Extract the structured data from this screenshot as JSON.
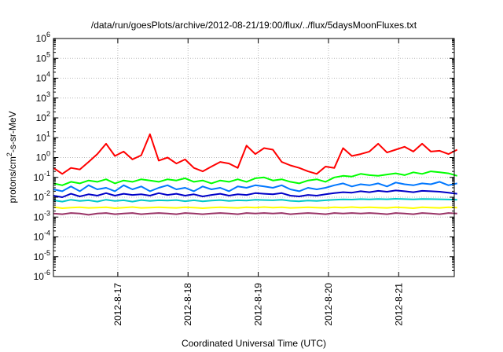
{
  "chart_data": {
    "type": "line",
    "title": "/data/run/goesPlots/archive/2012-08-21/19:00/flux/../flux/5daysMoonFluxes.txt",
    "xlabel": "Coordinated Universal Time (UTC)",
    "ylabel": "protons/cm²-s-sr-MeV",
    "ylabel_base": "protons/cm",
    "ylabel_sup": "2",
    "ylabel_rest": "-s-sr-MeV",
    "yscale": "log",
    "ylim": [
      1e-06,
      1000000.0
    ],
    "yticks": [
      {
        "base": "10",
        "exp": "-6"
      },
      {
        "base": "10",
        "exp": "-5"
      },
      {
        "base": "10",
        "exp": "-4"
      },
      {
        "base": "10",
        "exp": "-3"
      },
      {
        "base": "10",
        "exp": "-2"
      },
      {
        "base": "10",
        "exp": "-1"
      },
      {
        "base": "10",
        "exp": "0"
      },
      {
        "base": "10",
        "exp": "1"
      },
      {
        "base": "10",
        "exp": "2"
      },
      {
        "base": "10",
        "exp": "3"
      },
      {
        "base": "10",
        "exp": "4"
      },
      {
        "base": "10",
        "exp": "5"
      },
      {
        "base": "10",
        "exp": "6"
      }
    ],
    "xlim": [
      "2012-08-16 02:00",
      "2012-08-21 19:00"
    ],
    "xticks": [
      "2012-8-17",
      "2012-8-18",
      "2012-8-19",
      "2012-8-20",
      "2012-8-21"
    ],
    "grid": true,
    "series": [
      {
        "color": "#ff0000",
        "x_hours": [
          0,
          3,
          6,
          9,
          12,
          15,
          18,
          21,
          24,
          27,
          30,
          33,
          36,
          39,
          42,
          45,
          48,
          51,
          54,
          57,
          60,
          63,
          66,
          69,
          72,
          75,
          78,
          81,
          84,
          87,
          90,
          93,
          96,
          99,
          102,
          105,
          108,
          111,
          114,
          117,
          120,
          123,
          126,
          129,
          132,
          135,
          138
        ],
        "y": [
          0.3,
          0.15,
          0.3,
          0.25,
          0.6,
          1.5,
          5,
          1.2,
          2,
          0.8,
          1.3,
          15,
          0.7,
          1.0,
          0.5,
          0.8,
          0.3,
          0.2,
          0.35,
          0.6,
          0.5,
          0.3,
          4,
          1.5,
          3,
          2.5,
          0.6,
          0.4,
          0.3,
          0.2,
          0.15,
          0.35,
          0.3,
          3,
          1.2,
          1.5,
          2,
          5,
          1.8,
          2.5,
          3.5,
          2,
          5,
          2,
          2.2,
          1.5,
          2.5
        ]
      },
      {
        "color": "#00ff00",
        "y": [
          0.05,
          0.04,
          0.06,
          0.05,
          0.07,
          0.06,
          0.08,
          0.05,
          0.07,
          0.06,
          0.08,
          0.07,
          0.06,
          0.08,
          0.07,
          0.09,
          0.06,
          0.07,
          0.05,
          0.07,
          0.06,
          0.08,
          0.06,
          0.09,
          0.1,
          0.07,
          0.08,
          0.06,
          0.05,
          0.07,
          0.08,
          0.06,
          0.1,
          0.12,
          0.11,
          0.15,
          0.13,
          0.12,
          0.14,
          0.16,
          0.13,
          0.18,
          0.15,
          0.2,
          0.18,
          0.16,
          0.12
        ]
      },
      {
        "color": "#0077ff",
        "y": [
          0.025,
          0.02,
          0.035,
          0.02,
          0.04,
          0.025,
          0.03,
          0.02,
          0.04,
          0.025,
          0.035,
          0.02,
          0.03,
          0.04,
          0.025,
          0.03,
          0.02,
          0.035,
          0.025,
          0.03,
          0.02,
          0.035,
          0.03,
          0.04,
          0.035,
          0.03,
          0.04,
          0.025,
          0.02,
          0.03,
          0.025,
          0.03,
          0.04,
          0.05,
          0.035,
          0.045,
          0.04,
          0.05,
          0.035,
          0.055,
          0.045,
          0.04,
          0.05,
          0.045,
          0.06,
          0.04,
          0.05
        ]
      },
      {
        "color": "#0000c8",
        "y": [
          0.012,
          0.01,
          0.015,
          0.011,
          0.014,
          0.012,
          0.016,
          0.012,
          0.015,
          0.013,
          0.014,
          0.012,
          0.016,
          0.013,
          0.015,
          0.012,
          0.014,
          0.011,
          0.013,
          0.015,
          0.012,
          0.014,
          0.013,
          0.016,
          0.015,
          0.014,
          0.016,
          0.012,
          0.011,
          0.013,
          0.012,
          0.014,
          0.016,
          0.018,
          0.017,
          0.02,
          0.018,
          0.021,
          0.019,
          0.022,
          0.02,
          0.018,
          0.021,
          0.02,
          0.019,
          0.017,
          0.015
        ]
      },
      {
        "color": "#00c8c8",
        "y": [
          0.007,
          0.006,
          0.0075,
          0.0065,
          0.007,
          0.006,
          0.0075,
          0.0065,
          0.007,
          0.006,
          0.0072,
          0.0065,
          0.007,
          0.0068,
          0.0072,
          0.0063,
          0.007,
          0.0062,
          0.0068,
          0.0072,
          0.0065,
          0.007,
          0.0068,
          0.0075,
          0.0072,
          0.007,
          0.0074,
          0.0066,
          0.0062,
          0.0068,
          0.0065,
          0.007,
          0.0074,
          0.0078,
          0.0076,
          0.008,
          0.0078,
          0.0082,
          0.0079,
          0.0083,
          0.008,
          0.0078,
          0.0082,
          0.008,
          0.0079,
          0.0077,
          0.0075
        ]
      },
      {
        "color": "#ffff00",
        "y": [
          0.0032,
          0.0028,
          0.003,
          0.0031,
          0.0029,
          0.003,
          0.0031,
          0.0028,
          0.003,
          0.0032,
          0.0029,
          0.003,
          0.0031,
          0.003,
          0.0029,
          0.0031,
          0.003,
          0.0028,
          0.003,
          0.0031,
          0.003,
          0.0029,
          0.0031,
          0.003,
          0.0032,
          0.003,
          0.0031,
          0.0029,
          0.003,
          0.0031,
          0.003,
          0.0029,
          0.0031,
          0.003,
          0.0032,
          0.003,
          0.0031,
          0.003,
          0.0029,
          0.0031,
          0.003,
          0.0028,
          0.0031,
          0.003,
          0.0029,
          0.0031,
          0.003
        ]
      },
      {
        "color": "#993366",
        "y": [
          0.0015,
          0.0014,
          0.0016,
          0.0015,
          0.0013,
          0.0015,
          0.0016,
          0.0014,
          0.0015,
          0.0016,
          0.0014,
          0.0015,
          0.0016,
          0.0015,
          0.0014,
          0.0016,
          0.0015,
          0.0014,
          0.0015,
          0.0016,
          0.0015,
          0.0014,
          0.0016,
          0.0015,
          0.0016,
          0.0015,
          0.0016,
          0.0014,
          0.0015,
          0.0016,
          0.0015,
          0.0014,
          0.0016,
          0.0015,
          0.0016,
          0.0015,
          0.0016,
          0.0015,
          0.0014,
          0.0016,
          0.0015,
          0.0014,
          0.0016,
          0.0015,
          0.0014,
          0.0016,
          0.0015
        ]
      }
    ]
  }
}
